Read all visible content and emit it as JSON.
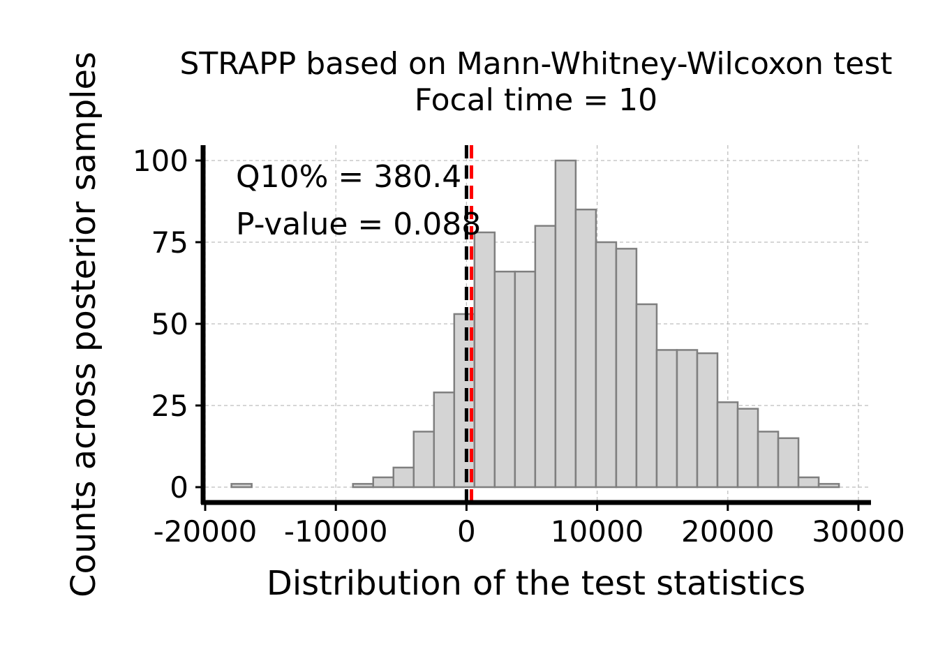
{
  "chart_data": {
    "type": "histogram",
    "title": "STRAPP based on Mann-Whitney-Wilcoxon test",
    "subtitle": "Focal time = 10",
    "xlabel": "Distribution of the test statistics",
    "ylabel": "Counts across posterior samples",
    "xlim": [
      -20000,
      30000
    ],
    "ylim": [
      0,
      100
    ],
    "x_ticks": [
      -20000,
      -10000,
      0,
      10000,
      20000,
      30000
    ],
    "x_tick_labels": [
      "-20000",
      "-10000",
      "0",
      "10000",
      "20000",
      "30000"
    ],
    "y_ticks": [
      0,
      25,
      50,
      75,
      100
    ],
    "y_tick_labels": [
      "0",
      "25",
      "50",
      "75",
      "100"
    ],
    "grid": true,
    "bin_width": 1550,
    "bins": [
      {
        "start": -17990,
        "count": 1
      },
      {
        "start": -16440,
        "count": 0
      },
      {
        "start": -14890,
        "count": 0
      },
      {
        "start": -13340,
        "count": 0
      },
      {
        "start": -11790,
        "count": 0
      },
      {
        "start": -10240,
        "count": 0
      },
      {
        "start": -8690,
        "count": 1
      },
      {
        "start": -7140,
        "count": 3
      },
      {
        "start": -5590,
        "count": 6
      },
      {
        "start": -4040,
        "count": 17
      },
      {
        "start": -2490,
        "count": 29
      },
      {
        "start": -940,
        "count": 53
      },
      {
        "start": 610,
        "count": 78
      },
      {
        "start": 2160,
        "count": 66
      },
      {
        "start": 3710,
        "count": 66
      },
      {
        "start": 5260,
        "count": 80
      },
      {
        "start": 6810,
        "count": 100
      },
      {
        "start": 8360,
        "count": 85
      },
      {
        "start": 9910,
        "count": 75
      },
      {
        "start": 11460,
        "count": 73
      },
      {
        "start": 13010,
        "count": 56
      },
      {
        "start": 14560,
        "count": 42
      },
      {
        "start": 16110,
        "count": 42
      },
      {
        "start": 17660,
        "count": 41
      },
      {
        "start": 19210,
        "count": 26
      },
      {
        "start": 20760,
        "count": 24
      },
      {
        "start": 22310,
        "count": 17
      },
      {
        "start": 23860,
        "count": 15
      },
      {
        "start": 25410,
        "count": 3
      },
      {
        "start": 26960,
        "count": 1
      }
    ],
    "reference_lines": [
      {
        "name": "null-value",
        "x": 0,
        "color": "#000000",
        "style": "dashed"
      },
      {
        "name": "q10",
        "x": 380.4,
        "color": "#ff0000",
        "style": "dashed"
      }
    ],
    "annotations": [
      {
        "name": "q10-annotation",
        "text": "Q10% = 380.4"
      },
      {
        "name": "pvalue-annotation",
        "text": "P-value = 0.088"
      }
    ],
    "colors": {
      "bar_fill": "#d4d4d4",
      "bar_stroke": "#7f7f7f",
      "grid": "#bebebe",
      "axis": "#000000"
    }
  }
}
